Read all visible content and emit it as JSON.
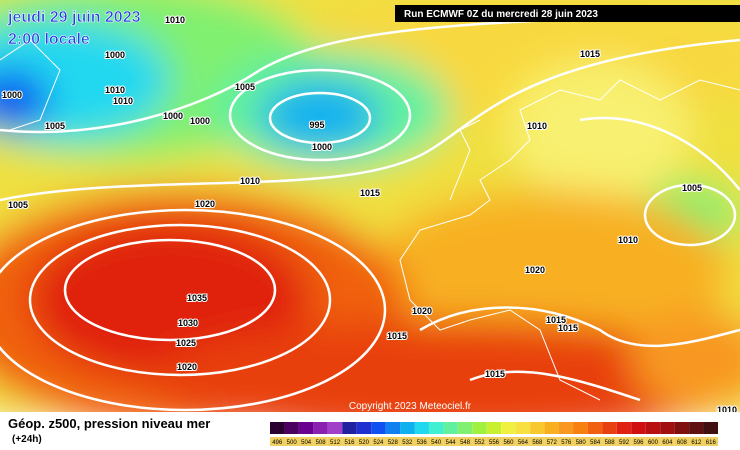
{
  "header": {
    "date": "jeudi 29 juin 2023",
    "time": "2:00 locale",
    "run": "Run ECMWF 0Z du mercredi 28 juin 2023"
  },
  "footer": {
    "title": "Géop. z500, pression niveau mer",
    "lead": "(+24h)",
    "copyright": "Copyright 2023 Meteociel.fr"
  },
  "isobar_labels": [
    "1010",
    "1000",
    "1000",
    "1010",
    "1010",
    "1005",
    "1005",
    "1000",
    "1000",
    "995",
    "1000",
    "1015",
    "1010",
    "1010",
    "1015",
    "1005",
    "1020",
    "1005",
    "1010",
    "1020",
    "1035",
    "1030",
    "1020",
    "1025",
    "1015",
    "1015",
    "1015",
    "1020",
    "1015",
    "1010"
  ],
  "scale": {
    "labels": [
      "496",
      "500",
      "504",
      "508",
      "512",
      "516",
      "520",
      "524",
      "528",
      "532",
      "536",
      "540",
      "544",
      "548",
      "552",
      "556",
      "560",
      "564",
      "568",
      "572",
      "576",
      "580",
      "584",
      "588",
      "592",
      "596",
      "600",
      "604",
      "608",
      "612",
      "616"
    ],
    "colors": [
      "#2a0030",
      "#4b0060",
      "#6a0090",
      "#8a20b0",
      "#a040c8",
      "#2020a0",
      "#2030d0",
      "#1050f0",
      "#1080f0",
      "#10b0f0",
      "#20d8f0",
      "#40f0d0",
      "#60f0a0",
      "#80f070",
      "#a0f040",
      "#c8f030",
      "#f0f040",
      "#f8e040",
      "#f8c830",
      "#f8b020",
      "#f89820",
      "#f88010",
      "#f06010",
      "#e84010",
      "#e02010",
      "#d01010",
      "#b81010",
      "#a01010",
      "#801010",
      "#601010",
      "#401010"
    ]
  }
}
